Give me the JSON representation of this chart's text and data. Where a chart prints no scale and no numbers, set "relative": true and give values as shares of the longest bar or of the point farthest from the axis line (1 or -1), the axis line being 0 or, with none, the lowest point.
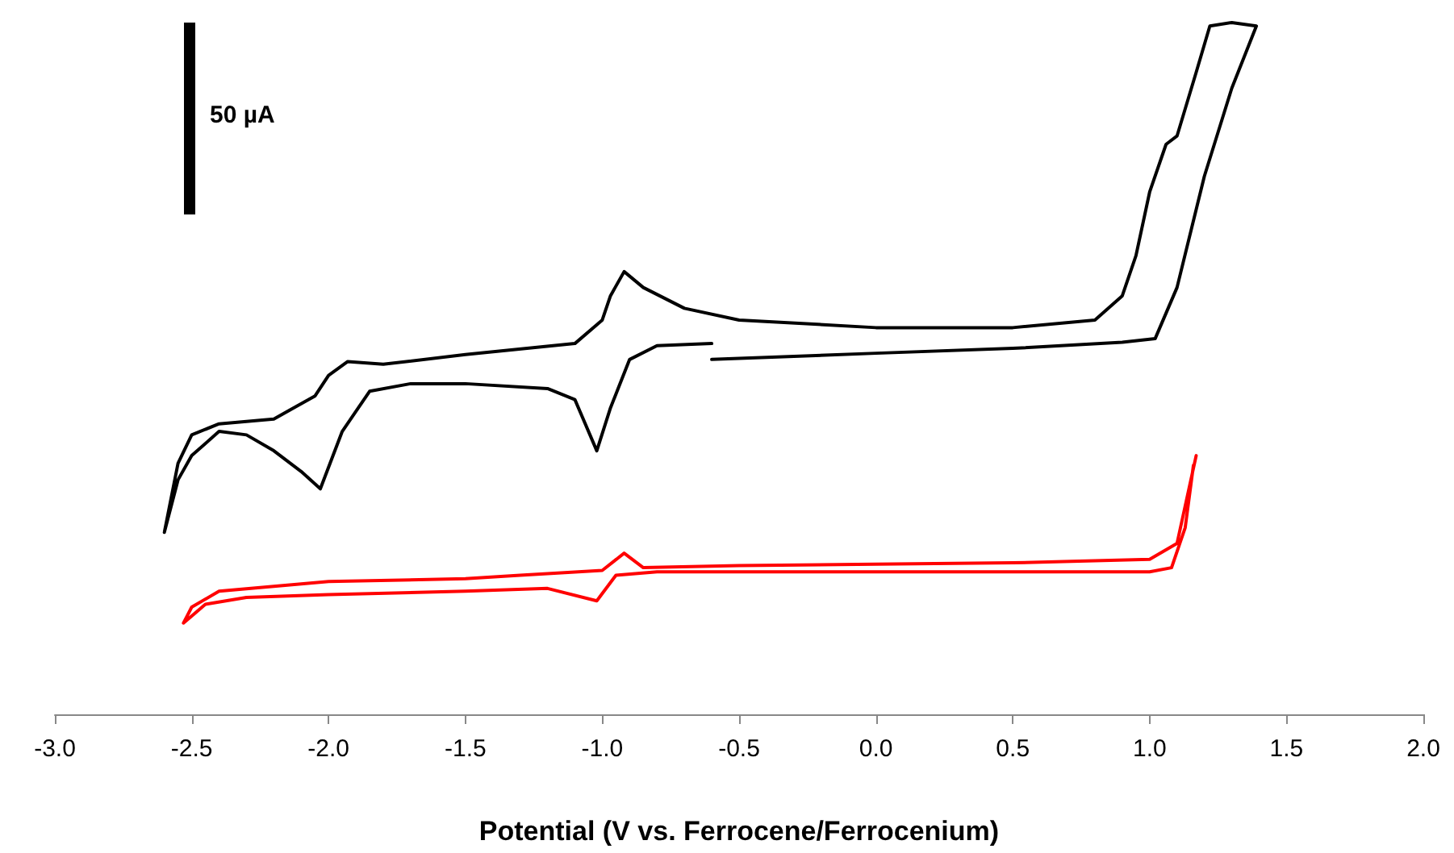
{
  "chart_data": {
    "type": "line",
    "xlabel": "Potential (V vs. Ferrocene/Ferrocenium)",
    "relative": true,
    "xlim": [
      -3,
      2
    ],
    "xticks": [
      {
        "value": -3,
        "label": "-3.0"
      },
      {
        "value": -2.5,
        "label": "-2.5"
      },
      {
        "value": -2,
        "label": "-2.0"
      },
      {
        "value": -1.5,
        "label": "-1.5"
      },
      {
        "value": -1,
        "label": "-1.0"
      },
      {
        "value": -0.5,
        "label": "-0.5"
      },
      {
        "value": 0,
        "label": "0.0"
      },
      {
        "value": 0.5,
        "label": "0.5"
      },
      {
        "value": 1,
        "label": "1.0"
      },
      {
        "value": 1.5,
        "label": "1.5"
      },
      {
        "value": 2,
        "label": "2.0"
      }
    ],
    "tick_labels": "x",
    "grid": false,
    "marker": "none",
    "line_style": "solid",
    "annotations": [
      "50 µA"
    ],
    "series": [
      {
        "color": "#000000",
        "x": [
          -0.6,
          0.0,
          0.5,
          0.9,
          1.02,
          1.1,
          1.2,
          1.3,
          1.39,
          1.3,
          1.22,
          1.17,
          1.1,
          1.06,
          1.0,
          0.95,
          0.9,
          0.8,
          0.5,
          0.0,
          -0.5,
          -0.7,
          -0.85,
          -0.92,
          -0.97,
          -1.0,
          -1.1,
          -1.5,
          -1.8,
          -1.93,
          -2.0,
          -2.05,
          -2.2,
          -2.4,
          -2.5,
          -2.55,
          -2.6,
          -2.55,
          -2.5,
          -2.4,
          -2.3,
          -2.2,
          -2.1,
          -2.03,
          -1.95,
          -1.85,
          -1.7,
          -1.5,
          -1.2,
          -1.1,
          -1.02,
          -0.97,
          -0.9,
          -0.8,
          -0.6
        ],
        "values": [
          0.513,
          0.522,
          0.529,
          0.538,
          0.543,
          0.617,
          0.778,
          0.905,
          0.995,
          1.0,
          0.995,
          0.928,
          0.836,
          0.824,
          0.755,
          0.663,
          0.605,
          0.57,
          0.559,
          0.559,
          0.57,
          0.587,
          0.617,
          0.64,
          0.605,
          0.57,
          0.536,
          0.52,
          0.506,
          0.51,
          0.49,
          0.46,
          0.427,
          0.42,
          0.404,
          0.363,
          0.263,
          0.339,
          0.374,
          0.409,
          0.404,
          0.381,
          0.351,
          0.326,
          0.409,
          0.467,
          0.478,
          0.478,
          0.471,
          0.455,
          0.381,
          0.443,
          0.513,
          0.533,
          0.536
        ]
      },
      {
        "color": "#ff0000",
        "x": [
          1.17,
          1.1,
          1.0,
          0.5,
          0.0,
          -0.5,
          -0.85,
          -0.92,
          -1.0,
          -1.3,
          -1.5,
          -2.0,
          -2.4,
          -2.5,
          -2.53,
          -2.45,
          -2.3,
          -2.0,
          -1.5,
          -1.2,
          -1.02,
          -0.95,
          -0.8,
          0.0,
          0.5,
          1.0,
          1.08,
          1.13,
          1.16
        ],
        "values": [
          0.374,
          0.247,
          0.224,
          0.219,
          0.217,
          0.215,
          0.212,
          0.233,
          0.208,
          0.201,
          0.196,
          0.192,
          0.178,
          0.155,
          0.132,
          0.159,
          0.169,
          0.173,
          0.178,
          0.182,
          0.164,
          0.201,
          0.206,
          0.206,
          0.206,
          0.206,
          0.212,
          0.27,
          0.36
        ]
      }
    ]
  }
}
